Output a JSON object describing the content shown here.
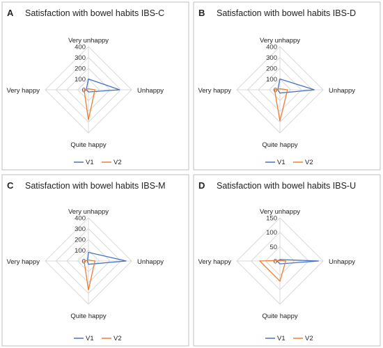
{
  "colors": {
    "V1": "#4472c4",
    "V2": "#ed7d31",
    "grid": "#d9d9d9",
    "border": "#bfbfbf"
  },
  "chart_data": [
    {
      "type": "radar",
      "letter": "A",
      "title": "Satisfaction with bowel habits IBS-C",
      "axes": [
        "Very unhappy",
        "Unhappy",
        "Quite happy",
        "Very happy"
      ],
      "ticks": [
        "400",
        "300",
        "200",
        "100",
        "0"
      ],
      "rmax": 400,
      "legend": [
        "V1",
        "V2"
      ],
      "series": [
        {
          "name": "V1",
          "values": [
            100,
            290,
            20,
            20
          ]
        },
        {
          "name": "V2",
          "values": [
            10,
            60,
            280,
            40
          ]
        }
      ]
    },
    {
      "type": "radar",
      "letter": "B",
      "title": "Satisfaction with bowel habits IBS-D",
      "axes": [
        "Very unhappy",
        "Unhappy",
        "Quite happy",
        "Very happy"
      ],
      "ticks": [
        "400",
        "300",
        "200",
        "100",
        "0"
      ],
      "rmax": 400,
      "legend": [
        "V1",
        "V2"
      ],
      "series": [
        {
          "name": "V1",
          "values": [
            100,
            320,
            30,
            20
          ]
        },
        {
          "name": "V2",
          "values": [
            10,
            70,
            290,
            50
          ]
        }
      ]
    },
    {
      "type": "radar",
      "letter": "C",
      "title": "Satisfaction with bowel habits IBS-M",
      "axes": [
        "Very unhappy",
        "Unhappy",
        "Quite happy",
        "Very happy"
      ],
      "ticks": [
        "400",
        "300",
        "200",
        "100",
        "0"
      ],
      "rmax": 400,
      "legend": [
        "V1",
        "V2"
      ],
      "series": [
        {
          "name": "V1",
          "values": [
            80,
            350,
            30,
            10
          ]
        },
        {
          "name": "V2",
          "values": [
            10,
            60,
            270,
            40
          ]
        }
      ]
    },
    {
      "type": "radar",
      "letter": "D",
      "title": "Satisfaction with bowel habits IBS-U",
      "axes": [
        "Very unhappy",
        "Unhappy",
        "Quite happy",
        "Very happy"
      ],
      "ticks": [
        "150",
        "100",
        "50",
        "0"
      ],
      "rmax": 150,
      "legend": [
        "V1",
        "V2"
      ],
      "series": [
        {
          "name": "V1",
          "values": [
            5,
            135,
            10,
            10
          ]
        },
        {
          "name": "V2",
          "values": [
            2,
            20,
            70,
            70
          ]
        }
      ]
    }
  ]
}
